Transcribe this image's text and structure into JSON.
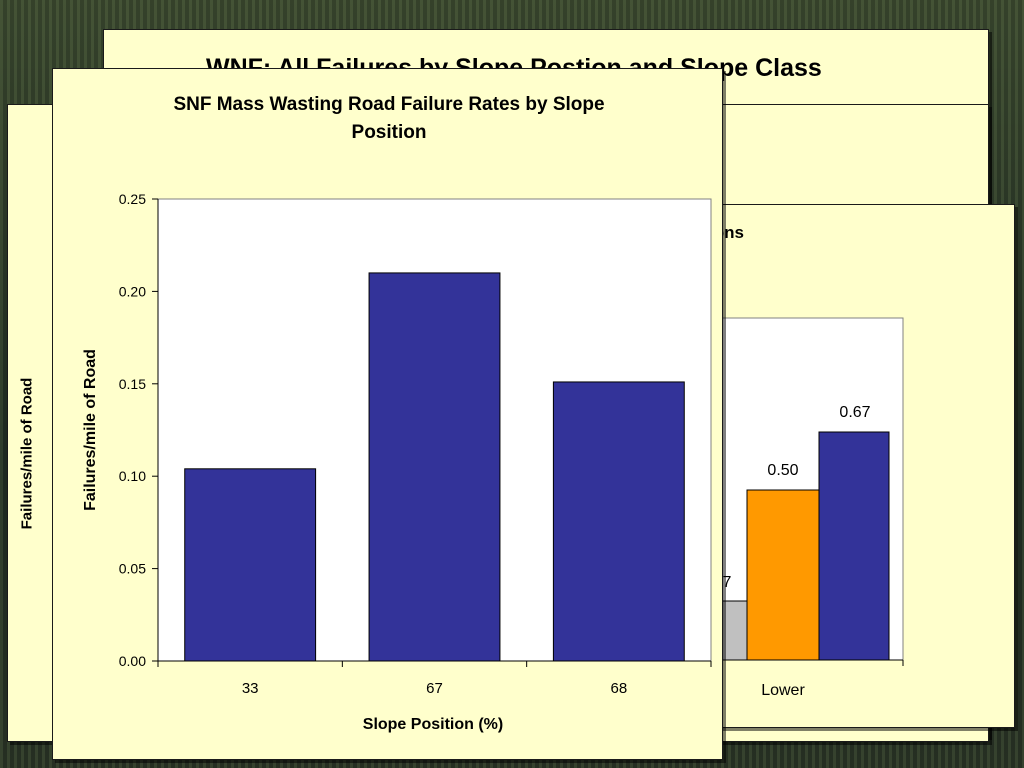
{
  "colors": {
    "panel_bg": "#ffffcc",
    "bar_blue": "#333399",
    "bar_orange": "#ff9900",
    "bar_gray": "#c0c0c0"
  },
  "back_slide": {
    "title": "WNF: All Failures by Slope Postion and Slope Class"
  },
  "left_slide": {
    "ylabel": "Failures/mile of Road"
  },
  "right_chart": {
    "title_fragment": "ions",
    "category_label": "Lower",
    "label_orange": "0.50",
    "label_blue": "0.67",
    "label_gray_fragment": "7"
  },
  "chart_data": {
    "type": "bar",
    "title": "SNF Mass Wasting Road Failure Rates by Slope Position",
    "title_lines": [
      "SNF Mass Wasting Road Failure Rates by Slope",
      "Position"
    ],
    "categories": [
      "33",
      "67",
      "68"
    ],
    "values": [
      0.104,
      0.21,
      0.151
    ],
    "xlabel": "Slope Position (%)",
    "ylabel": "Failures/mile of Road",
    "ylim": [
      0,
      0.25
    ],
    "yticks": [
      "0.00",
      "0.05",
      "0.10",
      "0.15",
      "0.20",
      "0.25"
    ],
    "grid": false
  }
}
